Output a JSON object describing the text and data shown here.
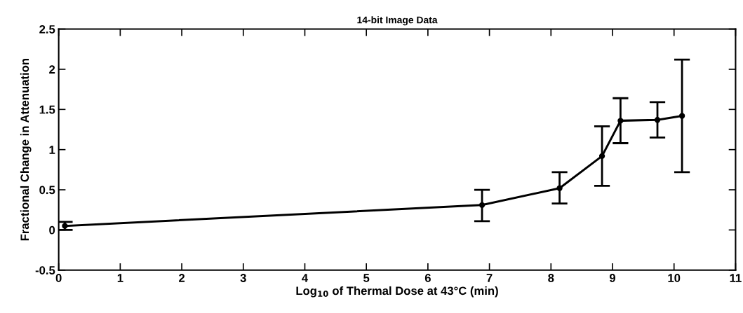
{
  "chart_data": {
    "type": "line",
    "title": "14-bit Image Data",
    "xlabel": "Log$_{10}$ of Thermal Dose at 43°C (min)",
    "ylabel": "Fractional Change in Attenuation",
    "x": [
      0.1,
      6.88,
      8.14,
      8.83,
      9.13,
      9.73,
      10.13
    ],
    "series": [
      {
        "color": "#000000",
        "values": [
          0.05,
          0.31,
          0.52,
          0.92,
          1.36,
          1.37,
          1.42
        ],
        "errors": [
          [
            0.0,
            0.1
          ],
          [
            0.11,
            0.5
          ],
          [
            0.33,
            0.72
          ],
          [
            0.55,
            1.29
          ],
          [
            1.08,
            1.64
          ],
          [
            1.15,
            1.59
          ],
          [
            0.72,
            2.12
          ]
        ]
      }
    ],
    "marker": "circle",
    "line_style": "solid",
    "xlim": [
      0,
      11
    ],
    "xticks": [
      0,
      1,
      2,
      3,
      4,
      5,
      6,
      7,
      8,
      9,
      10,
      11
    ],
    "ylim": [
      -0.5,
      2.5
    ],
    "yticks": [
      -0.5,
      0,
      0.5,
      1,
      1.5,
      2,
      2.5
    ],
    "grid": false,
    "legend": false
  }
}
